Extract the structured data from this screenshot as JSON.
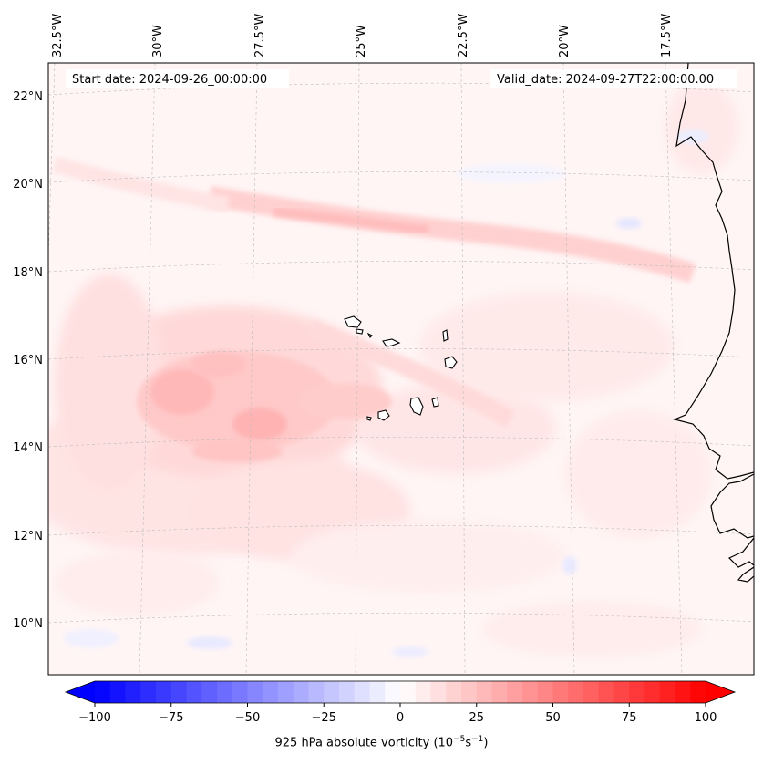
{
  "header": {
    "start_date": "Start date: 2024-09-26_00:00:00",
    "valid_date": "Valid_date: 2024-09-27T22:00:00.00"
  },
  "longitudes": [
    "32.5°W",
    "30°W",
    "27.5°W",
    "25°W",
    "22.5°W",
    "20°W",
    "17.5°W"
  ],
  "latitudes": [
    "22°N",
    "20°N",
    "18°N",
    "16°N",
    "14°N",
    "12°N",
    "10°N"
  ],
  "colorbar": {
    "min": -100,
    "max": 100,
    "ticks": [
      "−100",
      "−75",
      "−50",
      "−25",
      "0",
      "25",
      "50",
      "75",
      "100"
    ],
    "label_prefix": "925 hPa absolute vorticity (10",
    "label_exp1": "−5",
    "label_mid": "s",
    "label_exp2": "−1",
    "label_suffix": ")",
    "colors": {
      "negative": "#0000ff",
      "zero": "#ffffff",
      "positive": "#ff0000"
    }
  }
}
